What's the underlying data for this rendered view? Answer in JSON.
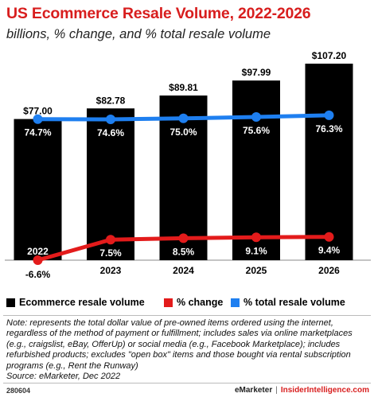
{
  "header": {
    "title": "US Ecommerce Resale Volume, 2022-2026",
    "subtitle": "billions, % change, and % total resale volume"
  },
  "chart_data": {
    "type": "bar",
    "categories": [
      "2022",
      "2023",
      "2024",
      "2025",
      "2026"
    ],
    "series": [
      {
        "name": "Ecommerce resale volume",
        "kind": "bar",
        "color": "#000000",
        "values": [
          77.0,
          82.78,
          89.81,
          97.99,
          107.2
        ],
        "labels": [
          "$77.00",
          "$82.78",
          "$89.81",
          "$97.99",
          "$107.20"
        ]
      },
      {
        "name": "% change",
        "kind": "line",
        "color": "#e31b1b",
        "values": [
          -6.6,
          7.5,
          8.5,
          9.1,
          9.4
        ],
        "labels": [
          "-6.6%",
          "7.5%",
          "8.5%",
          "9.1%",
          "9.4%"
        ]
      },
      {
        "name": "% total resale volume",
        "kind": "line",
        "color": "#1e7ff0",
        "values": [
          74.7,
          74.6,
          75.0,
          75.6,
          76.3
        ],
        "labels": [
          "74.7%",
          "74.6%",
          "75.0%",
          "75.6%",
          "76.3%"
        ]
      }
    ],
    "grid": false,
    "legend_position": "bottom"
  },
  "legend": {
    "items": [
      {
        "label": "Ecommerce resale volume",
        "color": "#000000"
      },
      {
        "label": "% change",
        "color": "#e31b1b"
      },
      {
        "label": "% total resale volume",
        "color": "#1e7ff0"
      }
    ]
  },
  "note": {
    "text": "Note: represents the total dollar value of pre-owned items ordered using the internet, regardless of the method of payment or fulfillment; includes sales via online marketplaces (e.g., craigslist, eBay, OfferUp) or social media (e.g., Facebook Marketplace); includes refurbished products; excludes \"open box\" items and those bought via rental subscription programs (e.g., Rent the Runway)",
    "source": "Source: eMarketer, Dec 2022"
  },
  "footer": {
    "chart_id": "280604",
    "brand": "eMarketer",
    "separator": "|",
    "brand2": "InsiderIntelligence.com"
  }
}
